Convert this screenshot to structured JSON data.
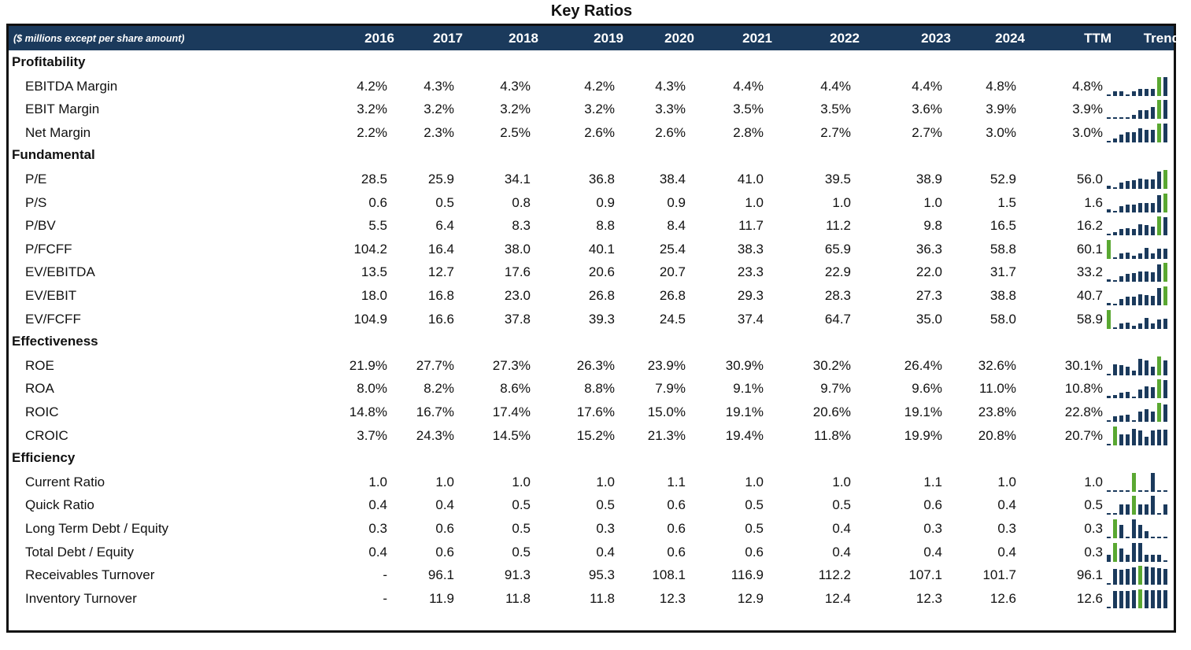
{
  "title": "Key Ratios",
  "header": {
    "note": "($ millions except per share amount)",
    "columns": [
      "2016",
      "2017",
      "2018",
      "2019",
      "2020",
      "2021",
      "2022",
      "2023",
      "2024",
      "TTM"
    ],
    "trend": "Trend"
  },
  "colors": {
    "header_bg": "#1b3a5c",
    "bar": "#1b3a5c",
    "highlight": "#5aa832"
  },
  "sections": [
    {
      "name": "Profitability",
      "rows": [
        {
          "label": "EBITDA Margin",
          "values": [
            "4.2%",
            "4.3%",
            "4.3%",
            "4.2%",
            "4.3%",
            "4.4%",
            "4.4%",
            "4.4%",
            "4.8%",
            "4.8%"
          ],
          "nums": [
            4.2,
            4.3,
            4.3,
            4.2,
            4.3,
            4.4,
            4.4,
            4.4,
            4.8,
            4.8
          ]
        },
        {
          "label": "EBIT Margin",
          "values": [
            "3.2%",
            "3.2%",
            "3.2%",
            "3.2%",
            "3.3%",
            "3.5%",
            "3.5%",
            "3.6%",
            "3.9%",
            "3.9%"
          ],
          "nums": [
            3.2,
            3.2,
            3.2,
            3.2,
            3.3,
            3.5,
            3.5,
            3.6,
            3.9,
            3.9
          ]
        },
        {
          "label": "Net Margin",
          "values": [
            "2.2%",
            "2.3%",
            "2.5%",
            "2.6%",
            "2.6%",
            "2.8%",
            "2.7%",
            "2.7%",
            "3.0%",
            "3.0%"
          ],
          "nums": [
            2.2,
            2.3,
            2.5,
            2.6,
            2.6,
            2.8,
            2.7,
            2.7,
            3.0,
            3.0
          ]
        }
      ]
    },
    {
      "name": "Fundamental",
      "rows": [
        {
          "label": "P/E",
          "values": [
            "28.5",
            "25.9",
            "34.1",
            "36.8",
            "38.4",
            "41.0",
            "39.5",
            "38.9",
            "52.9",
            "56.0"
          ],
          "nums": [
            28.5,
            25.9,
            34.1,
            36.8,
            38.4,
            41.0,
            39.5,
            38.9,
            52.9,
            56.0
          ]
        },
        {
          "label": "P/S",
          "values": [
            "0.6",
            "0.5",
            "0.8",
            "0.9",
            "0.9",
            "1.0",
            "1.0",
            "1.0",
            "1.5",
            "1.6"
          ],
          "nums": [
            0.6,
            0.5,
            0.8,
            0.9,
            0.9,
            1.0,
            1.0,
            1.0,
            1.5,
            1.6
          ]
        },
        {
          "label": "P/BV",
          "values": [
            "5.5",
            "6.4",
            "8.3",
            "8.8",
            "8.4",
            "11.7",
            "11.2",
            "9.8",
            "16.5",
            "16.2"
          ],
          "nums": [
            5.5,
            6.4,
            8.3,
            8.8,
            8.4,
            11.7,
            11.2,
            9.8,
            16.5,
            16.2
          ]
        },
        {
          "label": "P/FCFF",
          "values": [
            "104.2",
            "16.4",
            "38.0",
            "40.1",
            "25.4",
            "38.3",
            "65.9",
            "36.3",
            "58.8",
            "60.1"
          ],
          "nums": [
            104.2,
            16.4,
            38.0,
            40.1,
            25.4,
            38.3,
            65.9,
            36.3,
            58.8,
            60.1
          ]
        },
        {
          "label": "EV/EBITDA",
          "values": [
            "13.5",
            "12.7",
            "17.6",
            "20.6",
            "20.7",
            "23.3",
            "22.9",
            "22.0",
            "31.7",
            "33.2"
          ],
          "nums": [
            13.5,
            12.7,
            17.6,
            20.6,
            20.7,
            23.3,
            22.9,
            22.0,
            31.7,
            33.2
          ]
        },
        {
          "label": "EV/EBIT",
          "values": [
            "18.0",
            "16.8",
            "23.0",
            "26.8",
            "26.8",
            "29.3",
            "28.3",
            "27.3",
            "38.8",
            "40.7"
          ],
          "nums": [
            18.0,
            16.8,
            23.0,
            26.8,
            26.8,
            29.3,
            28.3,
            27.3,
            38.8,
            40.7
          ]
        },
        {
          "label": "EV/FCFF",
          "values": [
            "104.9",
            "16.6",
            "37.8",
            "39.3",
            "24.5",
            "37.4",
            "64.7",
            "35.0",
            "58.0",
            "58.9"
          ],
          "nums": [
            104.9,
            16.6,
            37.8,
            39.3,
            24.5,
            37.4,
            64.7,
            35.0,
            58.0,
            58.9
          ]
        }
      ]
    },
    {
      "name": "Effectiveness",
      "rows": [
        {
          "label": "ROE",
          "values": [
            "21.9%",
            "27.7%",
            "27.3%",
            "26.3%",
            "23.9%",
            "30.9%",
            "30.2%",
            "26.4%",
            "32.6%",
            "30.1%"
          ],
          "nums": [
            21.9,
            27.7,
            27.3,
            26.3,
            23.9,
            30.9,
            30.2,
            26.4,
            32.6,
            30.1
          ]
        },
        {
          "label": "ROA",
          "values": [
            "8.0%",
            "8.2%",
            "8.6%",
            "8.8%",
            "7.9%",
            "9.1%",
            "9.7%",
            "9.6%",
            "11.0%",
            "10.8%"
          ],
          "nums": [
            8.0,
            8.2,
            8.6,
            8.8,
            7.9,
            9.1,
            9.7,
            9.6,
            11.0,
            10.8
          ]
        },
        {
          "label": "ROIC",
          "values": [
            "14.8%",
            "16.7%",
            "17.4%",
            "17.6%",
            "15.0%",
            "19.1%",
            "20.6%",
            "19.1%",
            "23.8%",
            "22.8%"
          ],
          "nums": [
            14.8,
            16.7,
            17.4,
            17.6,
            15.0,
            19.1,
            20.6,
            19.1,
            23.8,
            22.8
          ]
        },
        {
          "label": "CROIC",
          "values": [
            "3.7%",
            "24.3%",
            "14.5%",
            "15.2%",
            "21.3%",
            "19.4%",
            "11.8%",
            "19.9%",
            "20.8%",
            "20.7%"
          ],
          "nums": [
            3.7,
            24.3,
            14.5,
            15.2,
            21.3,
            19.4,
            11.8,
            19.9,
            20.8,
            20.7
          ]
        }
      ]
    },
    {
      "name": "Efficiency",
      "rows": [
        {
          "label": "Current Ratio",
          "values": [
            "1.0",
            "1.0",
            "1.0",
            "1.0",
            "1.1",
            "1.0",
            "1.0",
            "1.1",
            "1.0",
            "1.0"
          ],
          "nums": [
            1.0,
            1.0,
            1.0,
            1.0,
            1.1,
            1.0,
            1.0,
            1.1,
            1.0,
            1.0
          ]
        },
        {
          "label": "Quick Ratio",
          "values": [
            "0.4",
            "0.4",
            "0.5",
            "0.5",
            "0.6",
            "0.5",
            "0.5",
            "0.6",
            "0.4",
            "0.5"
          ],
          "nums": [
            0.4,
            0.4,
            0.5,
            0.5,
            0.6,
            0.5,
            0.5,
            0.6,
            0.4,
            0.5
          ]
        },
        {
          "label": "Long Term Debt / Equity",
          "values": [
            "0.3",
            "0.6",
            "0.5",
            "0.3",
            "0.6",
            "0.5",
            "0.4",
            "0.3",
            "0.3",
            "0.3"
          ],
          "nums": [
            0.3,
            0.6,
            0.5,
            0.3,
            0.6,
            0.5,
            0.4,
            0.3,
            0.3,
            0.3
          ]
        },
        {
          "label": "Total Debt / Equity",
          "values": [
            "0.4",
            "0.6",
            "0.5",
            "0.4",
            "0.6",
            "0.6",
            "0.4",
            "0.4",
            "0.4",
            "0.3"
          ],
          "nums": [
            0.4,
            0.6,
            0.5,
            0.4,
            0.6,
            0.6,
            0.4,
            0.4,
            0.4,
            0.3
          ]
        },
        {
          "label": "Receivables Turnover",
          "values": [
            "-",
            "96.1",
            "91.3",
            "95.3",
            "108.1",
            "116.9",
            "112.2",
            "107.1",
            "101.7",
            "96.1"
          ],
          "nums": [
            0,
            96.1,
            91.3,
            95.3,
            108.1,
            116.9,
            112.2,
            107.1,
            101.7,
            96.1
          ]
        },
        {
          "label": "Inventory Turnover",
          "values": [
            "-",
            "11.9",
            "11.8",
            "11.8",
            "12.3",
            "12.9",
            "12.4",
            "12.3",
            "12.6",
            "12.6"
          ],
          "nums": [
            0,
            11.9,
            11.8,
            11.8,
            12.3,
            12.9,
            12.4,
            12.3,
            12.6,
            12.6
          ]
        }
      ]
    }
  ]
}
